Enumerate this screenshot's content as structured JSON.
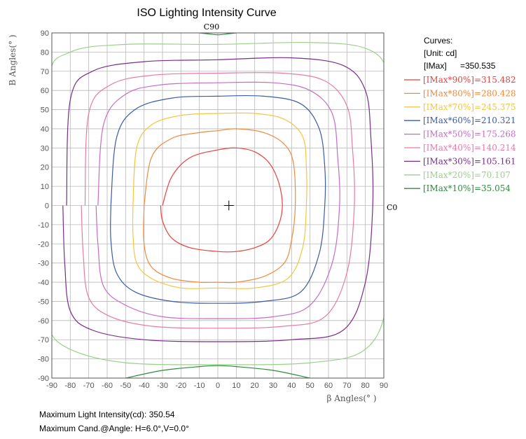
{
  "chart_data": {
    "type": "line",
    "title": "ISO Lighting Intensity Curve",
    "xlabel": "β Angles(° )",
    "ylabel": "B Angles(° )",
    "xlim": [
      -90,
      90
    ],
    "ylim": [
      -90,
      90
    ],
    "x_ticks": [
      "-90",
      "-80",
      "-70",
      "-60",
      "-50",
      "-40",
      "-30",
      "-20",
      "-10",
      "0",
      "10",
      "20",
      "30",
      "40",
      "50",
      "60",
      "70",
      "80",
      "90"
    ],
    "y_ticks": [
      "90",
      "80",
      "70",
      "60",
      "50",
      "40",
      "30",
      "20",
      "10",
      "0",
      "-10",
      "-20",
      "-30",
      "-40",
      "-50",
      "-60",
      "-70",
      "-80",
      "-90"
    ],
    "grid": true,
    "annotations": {
      "top": "C90",
      "right": "C0"
    },
    "center_marker": {
      "x": 6.0,
      "y": 0.0
    },
    "legend": {
      "placement": "right",
      "title": "Curves:",
      "unit": "[Unit: cd]",
      "imax_label": "[IMax]",
      "imax_value": "=350.535",
      "entries": [
        {
          "text": "[IMax*90%]=315.482",
          "color": "#e8413c"
        },
        {
          "text": "[IMax*80%]=280.428",
          "color": "#f08a3c"
        },
        {
          "text": "[IMax*70%]=245.375",
          "color": "#f5c542"
        },
        {
          "text": "[IMax*60%]=210.321",
          "color": "#3a5ba8"
        },
        {
          "text": "[IMax*50%]=175.268",
          "color": "#c76bc7"
        },
        {
          "text": "[IMax*40%]=140.214",
          "color": "#e87aa8"
        },
        {
          "text": "[IMax*30%]=105.161",
          "color": "#7a2d8c"
        },
        {
          "text": "[IMax*20%]=70.107",
          "color": "#9ad08a"
        },
        {
          "text": "[IMax*10%]=35.054",
          "color": "#2e8b3e"
        }
      ]
    },
    "series": [
      {
        "level": "90%",
        "color": "#e8413c",
        "x": [
          -30,
          -25,
          -15,
          0,
          10,
          20,
          28,
          33,
          35,
          33,
          28,
          20,
          10,
          0,
          -15,
          -25,
          -30,
          -31
        ],
        "y": [
          0,
          15,
          25,
          29,
          30,
          28,
          22,
          12,
          0,
          -10,
          -18,
          -22,
          -24,
          -24,
          -22,
          -17,
          -8,
          0
        ]
      },
      {
        "level": "80%",
        "color": "#f08a3c",
        "x": [
          -40,
          -36,
          -25,
          -10,
          0,
          10,
          25,
          36,
          41,
          42,
          40,
          36,
          25,
          10,
          0,
          -10,
          -25,
          -36,
          -40,
          -40
        ],
        "y": [
          0,
          25,
          35,
          38,
          39,
          40,
          38,
          32,
          22,
          0,
          -18,
          -30,
          -37,
          -40,
          -40,
          -40,
          -38,
          -32,
          -20,
          0
        ]
      },
      {
        "level": "70%",
        "color": "#f5c542",
        "x": [
          -46,
          -44,
          -36,
          -20,
          0,
          20,
          36,
          46,
          48,
          48,
          46,
          38,
          20,
          0,
          -20,
          -36,
          -44,
          -46,
          -46
        ],
        "y": [
          0,
          30,
          42,
          47,
          48,
          48,
          45,
          36,
          20,
          0,
          -22,
          -38,
          -43,
          -43,
          -43,
          -38,
          -30,
          -15,
          0
        ]
      },
      {
        "level": "60%",
        "color": "#3a5ba8",
        "x": [
          -58,
          -55,
          -45,
          -25,
          0,
          25,
          45,
          55,
          58,
          58,
          55,
          45,
          25,
          0,
          -25,
          -45,
          -55,
          -58,
          -58
        ],
        "y": [
          0,
          35,
          50,
          56,
          57,
          57,
          53,
          40,
          20,
          0,
          -25,
          -45,
          -50,
          -51,
          -50,
          -45,
          -35,
          -18,
          0
        ]
      },
      {
        "level": "50%",
        "color": "#c76bc7",
        "x": [
          -65,
          -62,
          -50,
          -30,
          0,
          30,
          50,
          62,
          65,
          66,
          62,
          50,
          30,
          0,
          -30,
          -50,
          -62,
          -65,
          -66
        ],
        "y": [
          0,
          42,
          58,
          63,
          64,
          64,
          60,
          48,
          25,
          0,
          -30,
          -52,
          -58,
          -59,
          -58,
          -52,
          -42,
          -20,
          0
        ]
      },
      {
        "level": "40%",
        "color": "#e87aa8",
        "x": [
          -72,
          -70,
          -58,
          -35,
          0,
          35,
          58,
          70,
          73,
          74,
          70,
          58,
          35,
          0,
          -35,
          -58,
          -70,
          -73,
          -74
        ],
        "y": [
          0,
          48,
          63,
          68,
          69,
          69,
          65,
          52,
          30,
          0,
          -35,
          -58,
          -63,
          -64,
          -63,
          -58,
          -48,
          -25,
          0
        ]
      },
      {
        "level": "30%",
        "color": "#7a2d8c",
        "x": [
          -82,
          -80,
          -68,
          -40,
          0,
          40,
          68,
          80,
          83,
          84,
          80,
          68,
          40,
          0,
          -40,
          -68,
          -80,
          -83,
          -84
        ],
        "y": [
          0,
          55,
          70,
          75,
          76,
          77,
          73,
          60,
          35,
          0,
          -40,
          -65,
          -70,
          -71,
          -70,
          -65,
          -55,
          -30,
          0
        ]
      },
      {
        "level": "20%",
        "color": "#9ad08a",
        "x": [
          -93,
          -92,
          -80,
          -50,
          0,
          50,
          80,
          92,
          95,
          95,
          92,
          80,
          50,
          0,
          -50,
          -80,
          -92,
          -95,
          -95
        ],
        "y": [
          0,
          65,
          80,
          84,
          84,
          85,
          82,
          70,
          40,
          0,
          -50,
          -75,
          -82,
          -83,
          -82,
          -75,
          -63,
          -35,
          0
        ]
      },
      {
        "level": "10% (top)",
        "color": "#2e8b3e",
        "x": [
          -10,
          -5,
          0,
          5,
          10
        ],
        "y": [
          90,
          89.5,
          89,
          89.5,
          90
        ]
      },
      {
        "level": "10% (bottom)",
        "color": "#2e8b3e",
        "x": [
          -50,
          -30,
          -10,
          0,
          10,
          30,
          50
        ],
        "y": [
          -90,
          -86,
          -84,
          -83.5,
          -84,
          -86,
          -90
        ]
      }
    ]
  },
  "footer": {
    "max_intensity": "Maximum Light Intensity(cd): 350.54",
    "max_angle": "Maximum Cand.@Angle: H=6.0°,V=0.0°"
  }
}
